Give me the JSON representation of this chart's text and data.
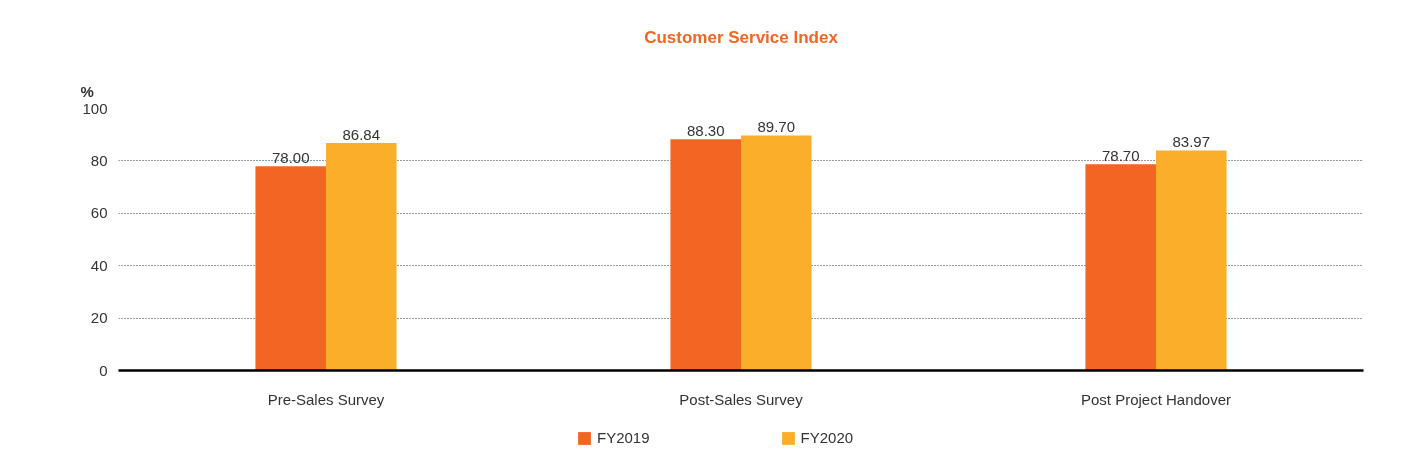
{
  "chart_data": {
    "type": "bar",
    "title": "Customer Service Index",
    "ylabel": "%",
    "categories": [
      "Pre-Sales Survey",
      "Post-Sales Survey",
      "Post Project Handover"
    ],
    "series": [
      {
        "name": "FY2019",
        "color": "#f26522",
        "values": [
          78.0,
          88.3,
          78.7
        ],
        "value_labels": [
          "78.00",
          "88.30",
          "78.70"
        ]
      },
      {
        "name": "FY2020",
        "color": "#fbae2a",
        "values": [
          86.84,
          89.7,
          83.97
        ],
        "value_labels": [
          "86.84",
          "89.70",
          "83.97"
        ]
      }
    ],
    "ylim": [
      0,
      100
    ],
    "yticks": [
      0,
      20,
      40,
      60,
      80,
      100
    ],
    "grid": "y",
    "legend": "bottom"
  }
}
